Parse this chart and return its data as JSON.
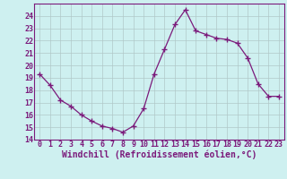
{
  "x": [
    0,
    1,
    2,
    3,
    4,
    5,
    6,
    7,
    8,
    9,
    10,
    11,
    12,
    13,
    14,
    15,
    16,
    17,
    18,
    19,
    20,
    21,
    22,
    23
  ],
  "y": [
    19.3,
    18.4,
    17.2,
    16.7,
    16.0,
    15.5,
    15.1,
    14.9,
    14.6,
    15.1,
    16.5,
    19.3,
    21.3,
    23.3,
    24.5,
    22.8,
    22.5,
    22.2,
    22.1,
    21.8,
    20.6,
    18.5,
    17.5,
    17.5
  ],
  "line_color": "#7b1a7b",
  "marker": "+",
  "marker_size": 4,
  "bg_color": "#cef0f0",
  "grid_color": "#b0c8c8",
  "xlabel": "Windchill (Refroidissement éolien,°C)",
  "xlabel_color": "#7b1a7b",
  "tick_color": "#7b1a7b",
  "spine_color": "#7b1a7b",
  "xlim": [
    -0.5,
    23.5
  ],
  "ylim": [
    14,
    25
  ],
  "yticks": [
    14,
    15,
    16,
    17,
    18,
    19,
    20,
    21,
    22,
    23,
    24
  ],
  "xticks": [
    0,
    1,
    2,
    3,
    4,
    5,
    6,
    7,
    8,
    9,
    10,
    11,
    12,
    13,
    14,
    15,
    16,
    17,
    18,
    19,
    20,
    21,
    22,
    23
  ],
  "tick_fontsize": 6,
  "xlabel_fontsize": 7
}
